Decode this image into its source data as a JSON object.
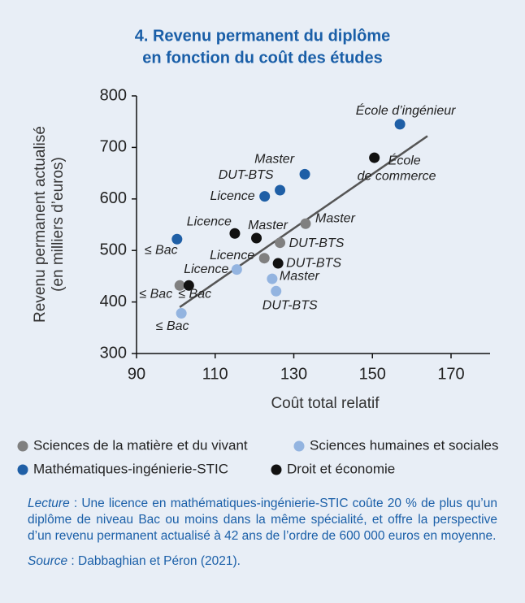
{
  "chart_data": {
    "type": "scatter",
    "title": [
      "4. Revenu permanent du diplôme",
      "en fonction du coût des études"
    ],
    "x_label": "Coût total relatif",
    "y_label": [
      "Revenu permanent actualisé",
      "(en milliers d’euros)"
    ],
    "xlim": [
      90,
      180
    ],
    "xticks": [
      90,
      110,
      130,
      150,
      170
    ],
    "ylim": [
      300,
      800
    ],
    "yticks": [
      300,
      400,
      500,
      600,
      700,
      800
    ],
    "series": [
      {
        "name": "Sciences de la matière et du vivant",
        "color": "#808080",
        "x": [
          101,
          122.5,
          126.5,
          133
        ],
        "values": [
          432,
          485,
          515,
          552
        ],
        "point_labels": [
          "≤ Bac",
          "Licence",
          "DUT-BTS",
          "Master"
        ]
      },
      {
        "name": "Sciences humaines et sociales",
        "color": "#93b4e0",
        "x": [
          101.4,
          115.5,
          124.5,
          125.5
        ],
        "values": [
          378,
          463,
          445,
          421
        ],
        "point_labels": [
          "≤ Bac",
          "Licence",
          "Master",
          "DUT-BTS"
        ]
      },
      {
        "name": "Mathématiques-ingénierie-STIC",
        "color": "#1f5fa6",
        "x": [
          100.3,
          122.6,
          126.5,
          132.8,
          157
        ],
        "values": [
          522,
          605,
          617,
          648,
          745
        ],
        "point_labels": [
          "≤ Bac",
          "Licence",
          "DUT-BTS",
          "Master",
          "École d’ingénieur"
        ]
      },
      {
        "name": "Droit et économie",
        "color": "#111111",
        "x": [
          103.3,
          115,
          120.5,
          126,
          150.5
        ],
        "values": [
          432,
          533,
          524,
          475,
          680
        ],
        "point_labels": [
          "≤ Bac",
          "Licence",
          "Master",
          "DUT-BTS",
          [
            "École",
            "de commerce"
          ]
        ]
      }
    ],
    "trend_line": {
      "color": "#555555",
      "x": [
        101,
        164
      ],
      "values": [
        390,
        722
      ]
    },
    "notes": {
      "lecture_label": "Lecture",
      "lecture_text": " : Une licence en mathématiques-ingénierie-STIC coûte 20 % de plus qu’un diplôme de niveau Bac ou moins dans la même spécialité, et offre la perspective d’un revenu permanent actualisé à 42 ans de l’ordre de 600 000 euros en moyenne.",
      "source_label": "Source",
      "source_text": " : Dabbaghian et Péron (2021)."
    }
  }
}
